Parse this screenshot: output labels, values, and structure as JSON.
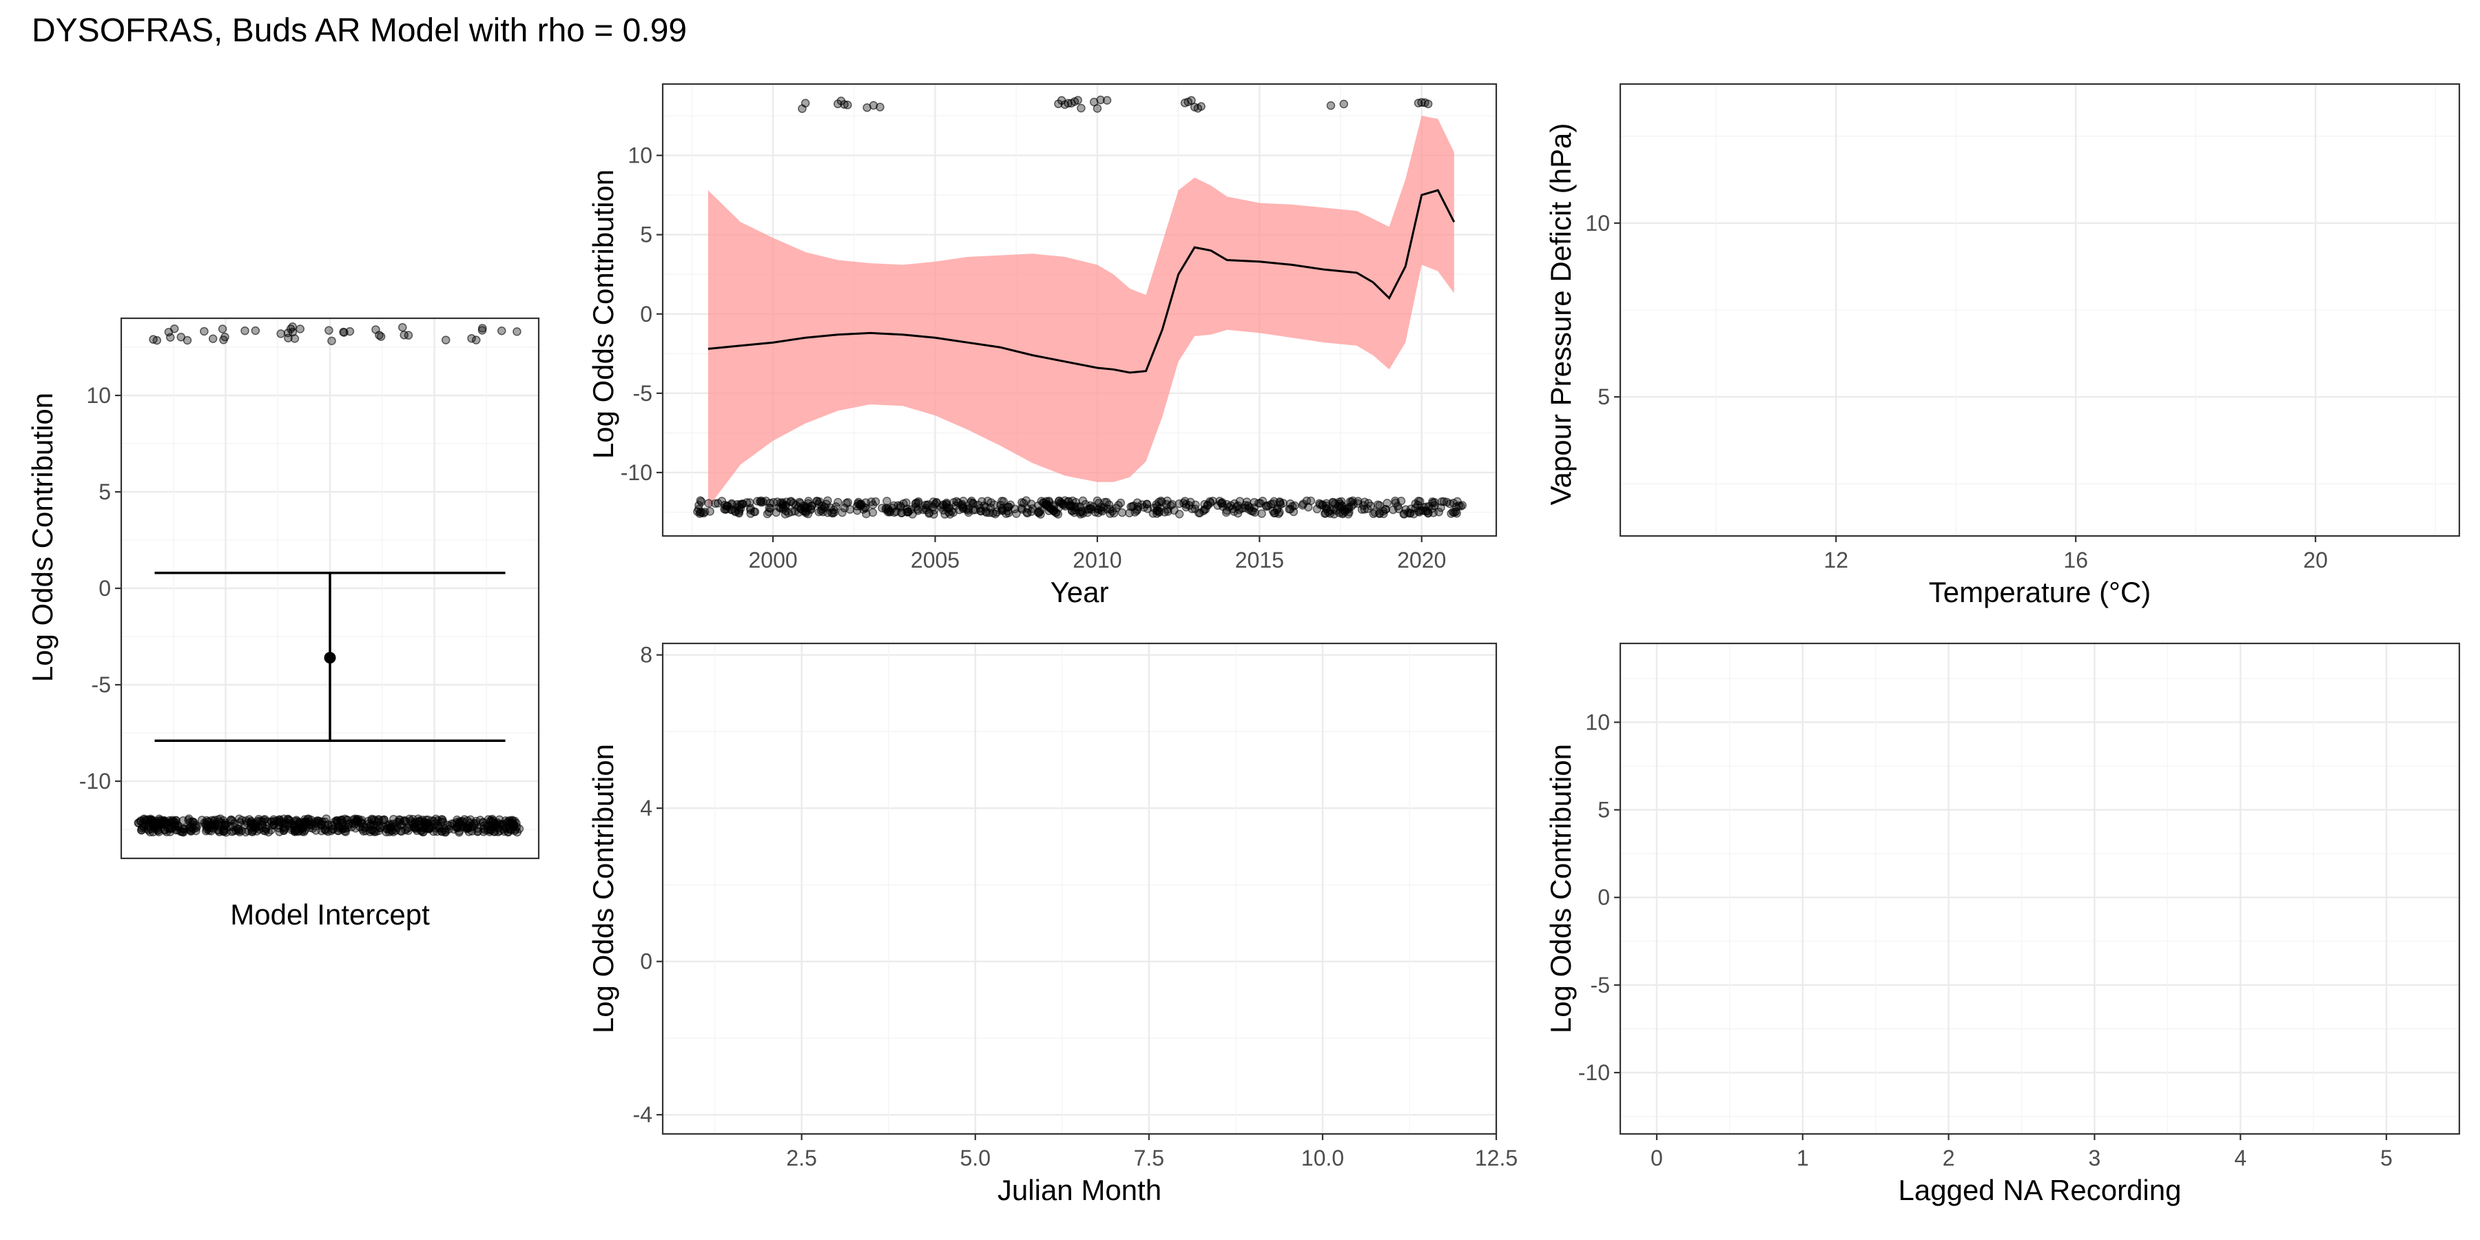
{
  "title": "DYSOFRAS, Buds AR Model with rho = 0.99",
  "colors": {
    "ribbon": "#ff9999",
    "line": "#000000",
    "points": "#000000",
    "grid": "#ebebeb",
    "border": "#333333"
  },
  "chart_data": [
    {
      "id": "intercept",
      "type": "scatter",
      "xlabel": "Model Intercept",
      "ylabel": "Log Odds Contribution",
      "xticks": [],
      "ylim": [
        -14,
        14
      ],
      "yticks": [
        -10,
        -5,
        0,
        5,
        10
      ],
      "yticklabels": [
        "-10",
        "-5",
        "0",
        "5",
        "10"
      ],
      "grid": true,
      "estimate": -3.6,
      "interval": [
        -7.9,
        0.8
      ],
      "rug_top_y": 13.2,
      "rug_bottom_y": -12.3,
      "rug_top_count": 40,
      "rug_bottom_count": 600
    },
    {
      "id": "year",
      "type": "line",
      "xlabel": "Year",
      "ylabel": "Log Odds Contribution",
      "xlim": [
        1996.6,
        2022.3
      ],
      "xticks": [
        2000,
        2005,
        2010,
        2015,
        2020
      ],
      "xticklabels": [
        "2000",
        "2005",
        "2010",
        "2015",
        "2020"
      ],
      "ylim": [
        -14,
        14.5
      ],
      "yticks": [
        -10,
        -5,
        0,
        5,
        10
      ],
      "yticklabels": [
        "-10",
        "-5",
        "0",
        "5",
        "10"
      ],
      "grid": true,
      "x": [
        1998,
        1999,
        2000,
        2001,
        2002,
        2003,
        2004,
        2005,
        2006,
        2007,
        2008,
        2009,
        2010,
        2010.5,
        2011,
        2011.5,
        2012,
        2012.5,
        2013,
        2013.5,
        2014,
        2015,
        2016,
        2017,
        2018,
        2018.5,
        2019,
        2019.5,
        2020,
        2020.5,
        2021
      ],
      "fit": [
        -2.2,
        -2.0,
        -1.8,
        -1.5,
        -1.3,
        -1.2,
        -1.3,
        -1.5,
        -1.8,
        -2.1,
        -2.6,
        -3.0,
        -3.4,
        -3.5,
        -3.7,
        -3.6,
        -1.0,
        2.5,
        4.2,
        4.0,
        3.4,
        3.3,
        3.1,
        2.8,
        2.6,
        2.0,
        1.0,
        3.0,
        7.5,
        7.8,
        5.8
      ],
      "lower": [
        -12.2,
        -9.5,
        -8.0,
        -6.9,
        -6.1,
        -5.7,
        -5.8,
        -6.4,
        -7.3,
        -8.3,
        -9.4,
        -10.2,
        -10.6,
        -10.6,
        -10.3,
        -9.3,
        -6.5,
        -3.0,
        -1.4,
        -1.3,
        -1.0,
        -1.2,
        -1.5,
        -1.8,
        -2.0,
        -2.6,
        -3.5,
        -1.8,
        3.1,
        2.7,
        1.3
      ],
      "upper": [
        7.8,
        5.8,
        4.8,
        3.9,
        3.4,
        3.2,
        3.1,
        3.3,
        3.6,
        3.7,
        3.8,
        3.6,
        3.1,
        2.5,
        1.6,
        1.2,
        4.5,
        7.8,
        8.6,
        8.1,
        7.4,
        7.0,
        6.9,
        6.7,
        6.5,
        6.0,
        5.5,
        8.5,
        12.5,
        12.3,
        10.2
      ],
      "rug_top_y": 13.2,
      "rug_bottom_y": -12.2,
      "rug_top_x": [
        2000.9,
        2001.0,
        2002.0,
        2002.1,
        2002.2,
        2002.3,
        2002.9,
        2003.1,
        2003.3,
        2008.8,
        2008.9,
        2009.0,
        2009.1,
        2009.2,
        2009.3,
        2009.4,
        2009.5,
        2009.9,
        2010.0,
        2010.1,
        2010.3,
        2012.7,
        2012.8,
        2012.9,
        2013.0,
        2013.1,
        2013.2,
        2017.2,
        2017.6,
        2019.9,
        2020.0,
        2020.1,
        2020.2
      ],
      "rug_bottom_range": [
        1997.6,
        2021.3
      ],
      "rug_bottom_count": 600
    },
    {
      "id": "temperature",
      "type": "scatter",
      "xlabel": "Temperature (°C)",
      "ylabel": "Vapour Pressure Deficit (hPa)",
      "xlim": [
        8.4,
        22.4
      ],
      "xticks": [
        12,
        16,
        20
      ],
      "xticklabels": [
        "12",
        "16",
        "20"
      ],
      "ylim": [
        1.0,
        14.0
      ],
      "yticks": [
        5,
        10
      ],
      "yticklabels": [
        "5",
        "10"
      ],
      "grid": true
    },
    {
      "id": "julian-month",
      "type": "line",
      "xlabel": "Julian Month",
      "ylabel": "Log Odds Contribution",
      "xlim": [
        0.5,
        12.5
      ],
      "xticks": [
        2.5,
        5.0,
        7.5,
        10.0,
        12.5
      ],
      "xticklabels": [
        "2.5",
        "5.0",
        "7.5",
        "10.0",
        "12.5"
      ],
      "ylim": [
        -4.5,
        8.3
      ],
      "yticks": [
        -4,
        0,
        4,
        8
      ],
      "yticklabels": [
        "-4",
        "0",
        "4",
        "8"
      ],
      "grid": true
    },
    {
      "id": "lagged-na",
      "type": "line",
      "xlabel": "Lagged NA Recording",
      "ylabel": "Log Odds Contribution",
      "xlim": [
        -0.25,
        5.5
      ],
      "xticks": [
        0,
        1,
        2,
        3,
        4,
        5
      ],
      "xticklabels": [
        "0",
        "1",
        "2",
        "3",
        "4",
        "5"
      ],
      "ylim": [
        -13.5,
        14.5
      ],
      "yticks": [
        -10,
        -5,
        0,
        5,
        10
      ],
      "yticklabels": [
        "-10",
        "-5",
        "0",
        "5",
        "10"
      ],
      "grid": true
    }
  ]
}
